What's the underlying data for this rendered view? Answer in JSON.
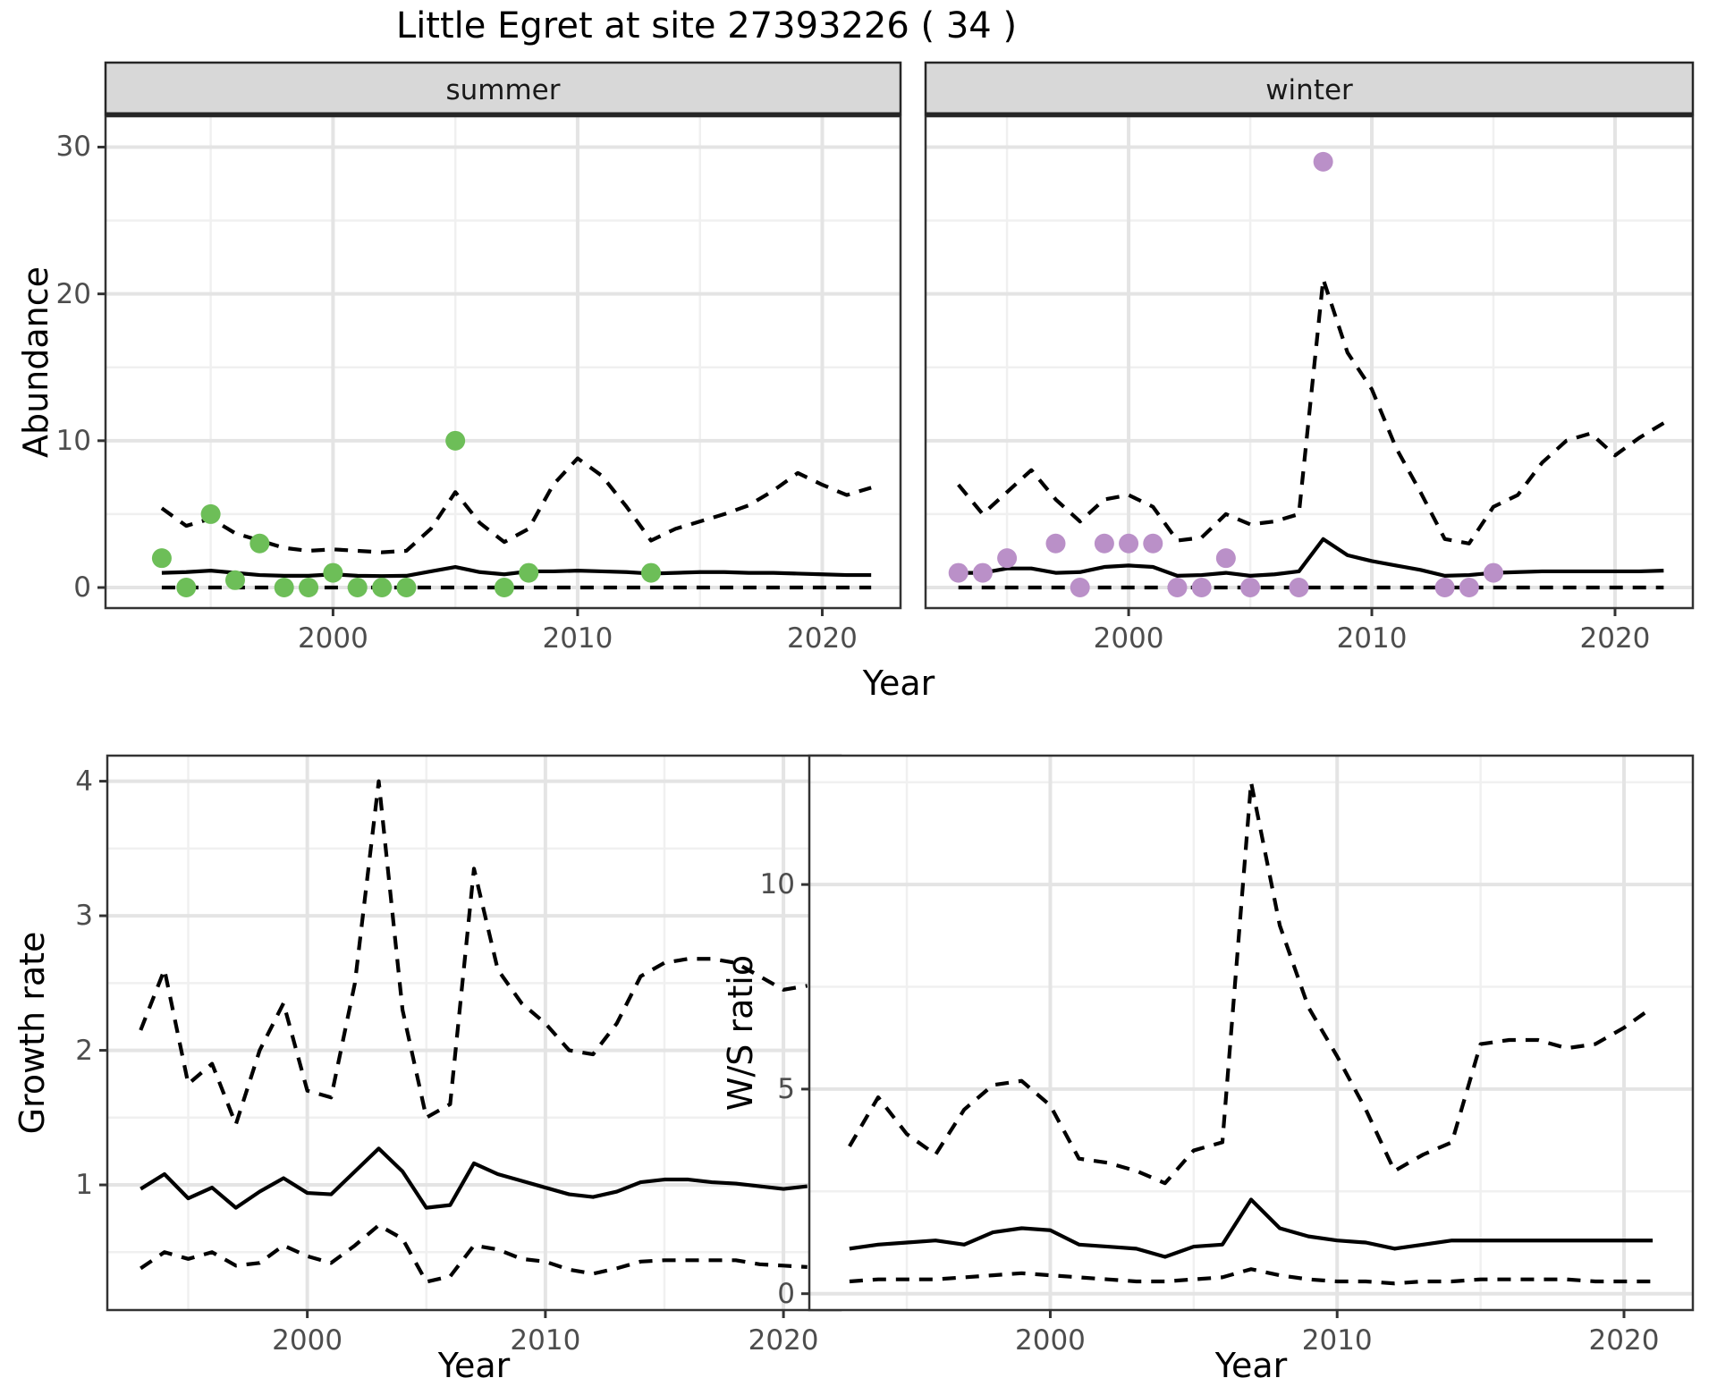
{
  "title": "Little Egret at site 27393226 ( 34 )",
  "theme": {
    "panel_border_color": "#333333",
    "strip_fill": "#d8d8d8",
    "strip_border": "#262626",
    "grid_major_color": "#e4e4e4",
    "grid_minor_color": "#f0f0f0",
    "line_color": "#000000",
    "axis_text_color": "#4d4d4d",
    "summer_point_color": "#6dbe58",
    "winter_point_color": "#ba90c8"
  },
  "chart_data": [
    {
      "id": "abundance-summer",
      "type": "line",
      "facet_label": "summer",
      "ylabel": "Abundance",
      "xlabel": "Year",
      "xlim": [
        1990.7,
        2023.2
      ],
      "ylim": [
        -1.4,
        32.1
      ],
      "x_ticks": [
        2000,
        2010,
        2020
      ],
      "x_minor": [
        1995,
        2005,
        2015
      ],
      "y_ticks": [
        0,
        10,
        20,
        30
      ],
      "y_minor": [
        5,
        15,
        25
      ],
      "show_y_tick_labels": true,
      "grid": true,
      "legend": "none",
      "point_color": "#6dbe58",
      "points": {
        "x": [
          1993,
          1994,
          1995,
          1996,
          1997,
          1998,
          1999,
          2000,
          2001,
          2002,
          2003,
          2005,
          2007,
          2008,
          2013
        ],
        "y": [
          2,
          0,
          5,
          0.5,
          3,
          0,
          0,
          1,
          0,
          0,
          0,
          10,
          0,
          1,
          1
        ]
      },
      "line_x": [
        1993,
        1994,
        1995,
        1996,
        1997,
        1998,
        1999,
        2000,
        2001,
        2002,
        2003,
        2004,
        2005,
        2006,
        2007,
        2008,
        2009,
        2010,
        2011,
        2012,
        2013,
        2014,
        2015,
        2016,
        2017,
        2018,
        2019,
        2020,
        2021,
        2022
      ],
      "series": [
        {
          "name": "upper_95ci",
          "style": "dashed",
          "y": [
            5.4,
            4.2,
            4.7,
            3.7,
            3.2,
            2.7,
            2.5,
            2.6,
            2.5,
            2.4,
            2.5,
            4.0,
            6.5,
            4.4,
            3.1,
            4.0,
            7.0,
            8.8,
            7.6,
            5.5,
            3.2,
            4.0,
            4.5,
            5.0,
            5.6,
            6.6,
            7.8,
            7.0,
            6.3,
            6.8
          ]
        },
        {
          "name": "median",
          "style": "solid",
          "y": [
            1.0,
            1.05,
            1.15,
            1.0,
            0.85,
            0.8,
            0.8,
            0.9,
            0.8,
            0.78,
            0.8,
            1.1,
            1.4,
            1.05,
            0.9,
            1.1,
            1.1,
            1.15,
            1.1,
            1.05,
            0.95,
            1.0,
            1.05,
            1.05,
            1.0,
            1.0,
            0.95,
            0.9,
            0.85,
            0.85
          ]
        },
        {
          "name": "lower_95ci",
          "style": "dashed",
          "y": [
            0,
            0,
            0,
            0,
            0,
            0,
            0,
            0,
            0,
            0,
            0,
            0,
            0,
            0,
            0,
            0,
            0,
            0,
            0,
            0,
            0,
            0,
            0,
            0,
            0,
            0,
            0,
            0,
            0,
            0
          ]
        }
      ]
    },
    {
      "id": "abundance-winter",
      "type": "line",
      "facet_label": "winter",
      "ylabel": "Abundance",
      "xlabel": "Year",
      "xlim": [
        1991.65,
        2023.2
      ],
      "ylim": [
        -1.4,
        32.1
      ],
      "x_ticks": [
        2000,
        2010,
        2020
      ],
      "x_minor": [
        1995,
        2005,
        2015
      ],
      "y_ticks": [
        0,
        10,
        20,
        30
      ],
      "y_minor": [
        5,
        15,
        25
      ],
      "show_y_tick_labels": false,
      "grid": true,
      "legend": "none",
      "point_color": "#ba90c8",
      "points": {
        "x": [
          1993,
          1994,
          1995,
          1997,
          1998,
          1999,
          2000,
          2001,
          2002,
          2003,
          2004,
          2005,
          2007,
          2008,
          2013,
          2014,
          2015
        ],
        "y": [
          1,
          1,
          2,
          3,
          0,
          3,
          3,
          3,
          0,
          0,
          2,
          0,
          0,
          29,
          0,
          0,
          1
        ]
      },
      "line_x": [
        1993,
        1994,
        1995,
        1996,
        1997,
        1998,
        1999,
        2000,
        2001,
        2002,
        2003,
        2004,
        2005,
        2006,
        2007,
        2008,
        2009,
        2010,
        2011,
        2012,
        2013,
        2014,
        2015,
        2016,
        2017,
        2018,
        2019,
        2020,
        2021,
        2022
      ],
      "series": [
        {
          "name": "upper_95ci",
          "style": "dashed",
          "y": [
            7.0,
            5.0,
            6.5,
            8.0,
            6.0,
            4.5,
            6.0,
            6.3,
            5.5,
            3.2,
            3.4,
            5.0,
            4.3,
            4.5,
            5.0,
            21.0,
            16.0,
            13.5,
            9.5,
            6.5,
            3.3,
            3.0,
            5.5,
            6.3,
            8.5,
            10.0,
            10.5,
            9.0,
            10.2,
            11.2
          ]
        },
        {
          "name": "median",
          "style": "solid",
          "y": [
            1.0,
            1.0,
            1.3,
            1.3,
            1.0,
            1.05,
            1.4,
            1.5,
            1.4,
            0.8,
            0.85,
            1.0,
            0.8,
            0.9,
            1.1,
            3.3,
            2.2,
            1.8,
            1.5,
            1.2,
            0.8,
            0.85,
            1.0,
            1.05,
            1.1,
            1.1,
            1.1,
            1.1,
            1.1,
            1.15
          ]
        },
        {
          "name": "lower_95ci",
          "style": "dashed",
          "y": [
            0,
            0,
            0,
            0,
            0,
            0,
            0,
            0,
            0,
            0,
            0,
            0,
            0,
            0,
            0,
            0,
            0,
            0,
            0,
            0,
            0,
            0,
            0,
            0,
            0,
            0,
            0,
            0,
            0,
            0
          ]
        }
      ]
    },
    {
      "id": "growth-rate",
      "type": "line",
      "facet_label": null,
      "ylabel": "Growth rate",
      "xlabel": "Year",
      "xlim": [
        1991.6,
        2022.4
      ],
      "ylim": [
        0.07,
        4.19
      ],
      "x_ticks": [
        2000,
        2010,
        2020
      ],
      "x_minor": [
        1995,
        2005,
        2015
      ],
      "y_ticks": [
        1,
        2,
        3,
        4
      ],
      "y_minor": [
        0.5,
        1.5,
        2.5,
        3.5
      ],
      "show_y_tick_labels": true,
      "grid": true,
      "legend": "none",
      "point_color": null,
      "points": {
        "x": [],
        "y": []
      },
      "line_x": [
        1993,
        1994,
        1995,
        1996,
        1997,
        1998,
        1999,
        2000,
        2001,
        2002,
        2003,
        2004,
        2005,
        2006,
        2007,
        2008,
        2009,
        2010,
        2011,
        2012,
        2013,
        2014,
        2015,
        2016,
        2017,
        2018,
        2019,
        2020,
        2021
      ],
      "series": [
        {
          "name": "upper_95ci",
          "style": "dashed",
          "y": [
            2.15,
            2.6,
            1.75,
            1.9,
            1.45,
            2.0,
            2.35,
            1.7,
            1.65,
            2.5,
            4.0,
            2.3,
            1.5,
            1.6,
            3.35,
            2.6,
            2.35,
            2.2,
            2.0,
            1.97,
            2.2,
            2.55,
            2.65,
            2.68,
            2.68,
            2.65,
            2.55,
            2.45,
            2.48
          ]
        },
        {
          "name": "median",
          "style": "solid",
          "y": [
            0.97,
            1.08,
            0.9,
            0.98,
            0.83,
            0.95,
            1.05,
            0.94,
            0.93,
            1.1,
            1.27,
            1.1,
            0.83,
            0.85,
            1.16,
            1.08,
            1.03,
            0.98,
            0.93,
            0.91,
            0.95,
            1.02,
            1.04,
            1.04,
            1.02,
            1.01,
            0.99,
            0.97,
            0.99
          ]
        },
        {
          "name": "lower_95ci",
          "style": "dashed",
          "y": [
            0.38,
            0.5,
            0.45,
            0.5,
            0.4,
            0.42,
            0.55,
            0.47,
            0.42,
            0.55,
            0.7,
            0.6,
            0.28,
            0.32,
            0.55,
            0.52,
            0.45,
            0.43,
            0.37,
            0.34,
            0.38,
            0.43,
            0.44,
            0.44,
            0.44,
            0.44,
            0.41,
            0.4,
            0.39
          ]
        }
      ]
    },
    {
      "id": "ws-ratio",
      "type": "line",
      "facet_label": null,
      "ylabel": "W/S ratio",
      "xlabel": "Year",
      "xlim": [
        1991.6,
        2022.4
      ],
      "ylim": [
        -0.4,
        13.15
      ],
      "x_ticks": [
        2000,
        2010,
        2020
      ],
      "x_minor": [
        1995,
        2005,
        2015
      ],
      "y_ticks": [
        0,
        5,
        10
      ],
      "y_minor": [
        2.5,
        7.5,
        12.5
      ],
      "show_y_tick_labels": true,
      "grid": true,
      "legend": "none",
      "point_color": null,
      "points": {
        "x": [],
        "y": []
      },
      "line_x": [
        1993,
        1994,
        1995,
        1996,
        1997,
        1998,
        1999,
        2000,
        2001,
        2002,
        2003,
        2004,
        2005,
        2006,
        2007,
        2008,
        2009,
        2010,
        2011,
        2012,
        2013,
        2014,
        2015,
        2016,
        2017,
        2018,
        2019,
        2020,
        2021
      ],
      "series": [
        {
          "name": "upper_95ci",
          "style": "dashed",
          "y": [
            3.6,
            4.8,
            3.9,
            3.4,
            4.5,
            5.1,
            5.2,
            4.6,
            3.3,
            3.2,
            3.0,
            2.7,
            3.5,
            3.7,
            12.5,
            9.0,
            7.0,
            5.8,
            4.5,
            3.0,
            3.4,
            3.7,
            6.1,
            6.2,
            6.2,
            6.0,
            6.1,
            6.5,
            7.0
          ]
        },
        {
          "name": "median",
          "style": "solid",
          "y": [
            1.1,
            1.2,
            1.25,
            1.3,
            1.2,
            1.5,
            1.6,
            1.55,
            1.2,
            1.15,
            1.1,
            0.9,
            1.15,
            1.2,
            2.3,
            1.6,
            1.4,
            1.3,
            1.25,
            1.1,
            1.2,
            1.3,
            1.3,
            1.3,
            1.3,
            1.3,
            1.3,
            1.3,
            1.3
          ]
        },
        {
          "name": "lower_95ci",
          "style": "dashed",
          "y": [
            0.3,
            0.35,
            0.35,
            0.35,
            0.4,
            0.45,
            0.5,
            0.45,
            0.4,
            0.35,
            0.3,
            0.3,
            0.35,
            0.4,
            0.6,
            0.45,
            0.35,
            0.3,
            0.3,
            0.25,
            0.3,
            0.3,
            0.35,
            0.35,
            0.35,
            0.35,
            0.3,
            0.3,
            0.3
          ]
        }
      ]
    }
  ]
}
